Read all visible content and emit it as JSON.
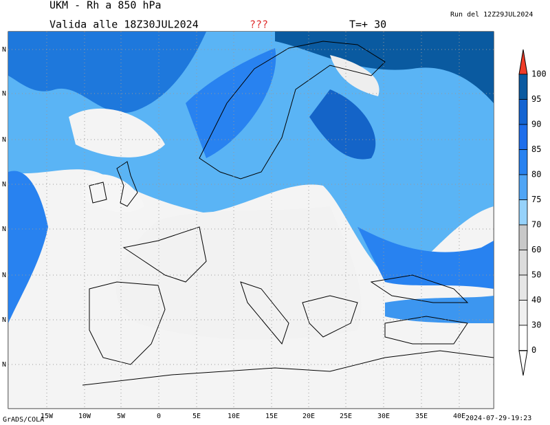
{
  "header": {
    "title": "UKM - Rh a 850 hPa",
    "valid": "Valida alle 18Z30JUL2024",
    "flag": "???",
    "step": "T=+ 30",
    "run": "Run del 12Z29JUL2024"
  },
  "map": {
    "lon_labels": [
      "15W",
      "10W",
      "5W",
      "0",
      "5E",
      "10E",
      "15E",
      "20E",
      "25E",
      "30E",
      "35E",
      "40E"
    ],
    "lat_labels": [
      "N",
      "N",
      "N",
      "N",
      "N",
      "N",
      "N",
      "N"
    ]
  },
  "colorbar": {
    "labels": [
      "100",
      "95",
      "90",
      "85",
      "80",
      "75",
      "70",
      "60",
      "50",
      "40",
      "30",
      "0"
    ]
  },
  "footer": {
    "credit": "GrADS/COLA",
    "timestamp": "2024-07-29-19:23"
  }
}
